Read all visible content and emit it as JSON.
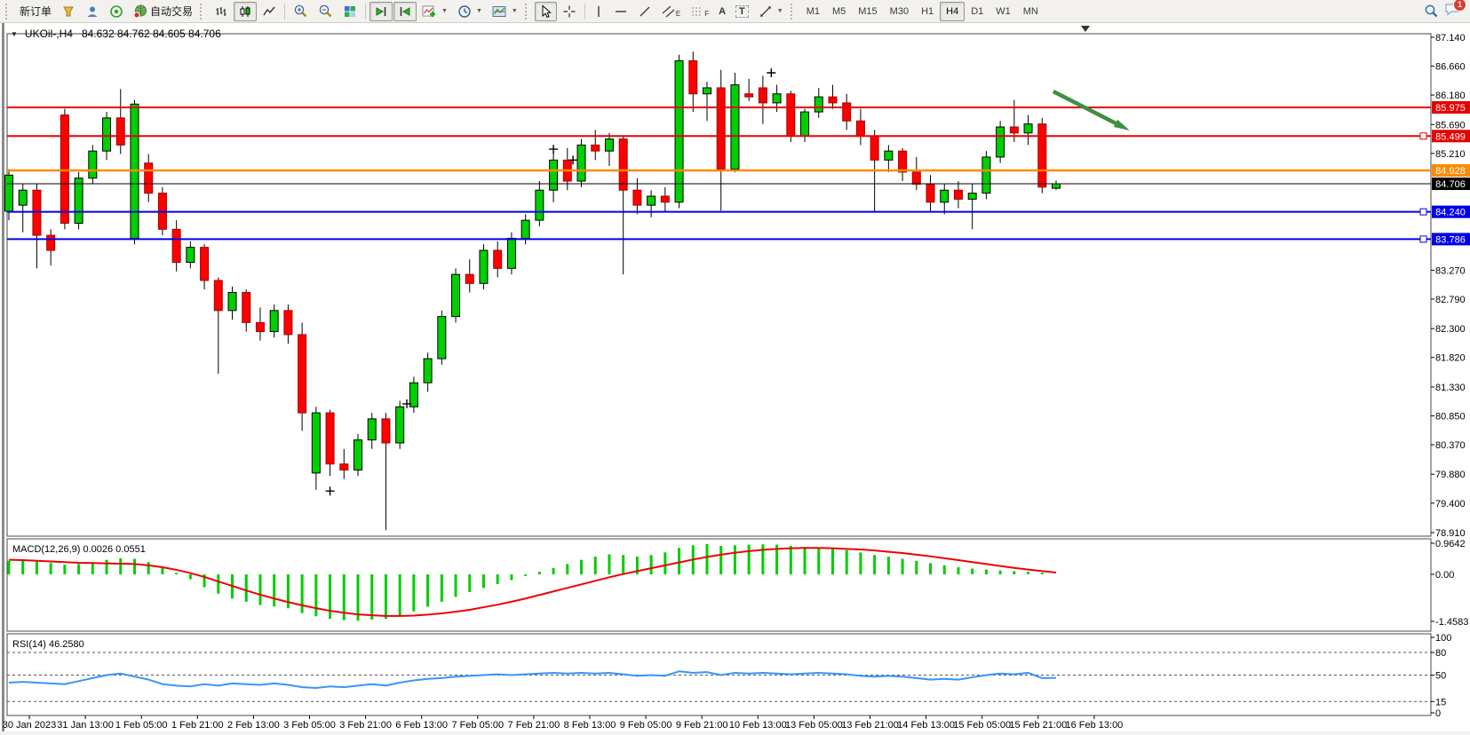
{
  "toolbar": {
    "new_order": "新订单",
    "autotrading": "自动交易",
    "timeframes": [
      "M1",
      "M5",
      "M15",
      "M30",
      "H1",
      "H4",
      "D1",
      "W1",
      "MN"
    ],
    "active_timeframe": "H4",
    "notification_count": "1",
    "tool_glyphs": {
      "text_tool": "A",
      "label_tool": "T",
      "channel_tool": "E",
      "fibo_tool": "F",
      "dropdown": "▼",
      "collapse": "▼"
    }
  },
  "chart": {
    "title_symbol": "UKOil-,H4",
    "title_ohlc": "84.632 84.762 84.605 84.706"
  },
  "chart_data": {
    "type": "candlestick",
    "symbol": "UKOil-,H4",
    "timeframe": "H4",
    "grid": false,
    "colors": {
      "up": "#00cf00",
      "down": "#ff0000",
      "up_stroke": "#000000",
      "down_stroke": "#a50000",
      "wick": "#000000",
      "axis_text": "#000000"
    },
    "main_ylim": [
      78.91,
      87.14
    ],
    "price_axis_ticks": [
      "87.140",
      "86.660",
      "86.180",
      "85.690",
      "85.210",
      "83.270",
      "82.790",
      "82.300",
      "81.820",
      "81.330",
      "80.850",
      "80.370",
      "79.880",
      "79.400",
      "78.910"
    ],
    "time_labels": [
      "30 Jan 2023",
      "31 Jan 13:00",
      "1 Feb 05:00",
      "1 Feb 21:00",
      "2 Feb 13:00",
      "3 Feb 05:00",
      "3 Feb 21:00",
      "6 Feb 13:00",
      "7 Feb 05:00",
      "7 Feb 21:00",
      "8 Feb 13:00",
      "9 Feb 05:00",
      "9 Feb 21:00",
      "10 Feb 13:00",
      "13 Feb 05:00",
      "13 Feb 21:00",
      "14 Feb 13:00",
      "15 Feb 05:00",
      "15 Feb 21:00",
      "16 Feb 13:00"
    ],
    "bars": [
      [
        84.25,
        84.95,
        84.1,
        84.85
      ],
      [
        84.35,
        84.7,
        83.9,
        84.6
      ],
      [
        84.6,
        84.7,
        83.3,
        83.85
      ],
      [
        83.85,
        83.95,
        83.35,
        83.6
      ],
      [
        85.85,
        85.95,
        83.95,
        84.05
      ],
      [
        84.05,
        84.9,
        83.95,
        84.8
      ],
      [
        84.8,
        85.35,
        84.7,
        85.25
      ],
      [
        85.25,
        85.9,
        85.1,
        85.8
      ],
      [
        85.8,
        86.28,
        85.2,
        85.35
      ],
      [
        83.8,
        86.1,
        83.7,
        86.03
      ],
      [
        85.05,
        85.2,
        84.4,
        84.55
      ],
      [
        84.55,
        84.65,
        83.85,
        83.95
      ],
      [
        83.95,
        84.1,
        83.25,
        83.4
      ],
      [
        83.4,
        83.75,
        83.3,
        83.65
      ],
      [
        83.65,
        83.7,
        82.95,
        83.1
      ],
      [
        83.1,
        83.15,
        81.55,
        82.6
      ],
      [
        82.6,
        83.0,
        82.45,
        82.9
      ],
      [
        82.9,
        82.95,
        82.25,
        82.4
      ],
      [
        82.4,
        82.65,
        82.1,
        82.25
      ],
      [
        82.25,
        82.7,
        82.15,
        82.6
      ],
      [
        82.6,
        82.7,
        82.05,
        82.2
      ],
      [
        82.2,
        82.4,
        80.6,
        80.9
      ],
      [
        79.9,
        81.0,
        79.62,
        80.9
      ],
      [
        80.9,
        80.95,
        79.85,
        80.05
      ],
      [
        80.05,
        80.3,
        79.8,
        79.95
      ],
      [
        79.95,
        80.55,
        79.85,
        80.45
      ],
      [
        80.45,
        80.9,
        80.3,
        80.8
      ],
      [
        80.8,
        80.9,
        78.95,
        80.4
      ],
      [
        80.4,
        81.1,
        80.3,
        81.0
      ],
      [
        81.0,
        81.5,
        80.9,
        81.4
      ],
      [
        81.4,
        81.9,
        81.25,
        81.8
      ],
      [
        81.8,
        82.6,
        81.7,
        82.5
      ],
      [
        82.5,
        83.3,
        82.4,
        83.2
      ],
      [
        83.2,
        83.45,
        82.9,
        83.05
      ],
      [
        83.05,
        83.7,
        82.95,
        83.6
      ],
      [
        83.6,
        83.75,
        83.15,
        83.3
      ],
      [
        83.3,
        83.9,
        83.2,
        83.8
      ],
      [
        83.8,
        84.2,
        83.7,
        84.1
      ],
      [
        84.1,
        84.75,
        84.0,
        84.6
      ],
      [
        84.6,
        85.25,
        84.4,
        85.1
      ],
      [
        85.1,
        85.3,
        84.6,
        84.75
      ],
      [
        84.75,
        85.45,
        84.65,
        85.35
      ],
      [
        85.35,
        85.6,
        85.1,
        85.25
      ],
      [
        85.25,
        85.55,
        85.0,
        85.45
      ],
      [
        85.45,
        85.5,
        83.2,
        84.6
      ],
      [
        84.6,
        84.8,
        84.2,
        84.35
      ],
      [
        84.35,
        84.6,
        84.15,
        84.5
      ],
      [
        84.5,
        84.65,
        84.25,
        84.4
      ],
      [
        84.4,
        86.85,
        84.3,
        86.75
      ],
      [
        86.75,
        86.9,
        85.9,
        86.2
      ],
      [
        86.2,
        86.4,
        85.75,
        86.3
      ],
      [
        86.3,
        86.6,
        84.26,
        84.95
      ],
      [
        84.95,
        86.55,
        84.9,
        86.35
      ],
      [
        86.2,
        86.45,
        86.08,
        86.15
      ],
      [
        86.3,
        86.5,
        85.7,
        86.05
      ],
      [
        86.05,
        86.35,
        85.9,
        86.2
      ],
      [
        86.2,
        86.25,
        85.4,
        85.5
      ],
      [
        85.5,
        85.95,
        85.4,
        85.9
      ],
      [
        85.9,
        86.3,
        85.8,
        86.15
      ],
      [
        86.15,
        86.35,
        85.95,
        86.05
      ],
      [
        86.05,
        86.2,
        85.6,
        85.75
      ],
      [
        85.75,
        85.95,
        85.35,
        85.5
      ],
      [
        85.5,
        85.6,
        84.25,
        85.1
      ],
      [
        85.1,
        85.35,
        84.9,
        85.25
      ],
      [
        85.25,
        85.3,
        84.75,
        84.9
      ],
      [
        84.9,
        85.15,
        84.6,
        84.7
      ],
      [
        84.7,
        84.85,
        84.25,
        84.4
      ],
      [
        84.4,
        84.7,
        84.2,
        84.6
      ],
      [
        84.6,
        84.75,
        84.3,
        84.45
      ],
      [
        84.45,
        84.7,
        83.95,
        84.55
      ],
      [
        84.55,
        85.25,
        84.45,
        85.15
      ],
      [
        85.15,
        85.75,
        85.05,
        85.65
      ],
      [
        85.65,
        86.1,
        85.4,
        85.55
      ],
      [
        85.55,
        85.85,
        85.35,
        85.7
      ],
      [
        85.7,
        85.8,
        84.55,
        84.65
      ],
      [
        84.632,
        84.762,
        84.605,
        84.706
      ]
    ],
    "hlines": [
      {
        "price": 85.975,
        "label": "85.975",
        "color": "#e60000",
        "width": 2,
        "handle": false
      },
      {
        "price": 85.499,
        "label": "85.499",
        "color": "#e60000",
        "width": 2,
        "handle": true
      },
      {
        "price": 84.928,
        "label": "84.928",
        "color": "#ff8a00",
        "width": 2.5,
        "handle": false
      },
      {
        "price": 84.24,
        "label": "84.240",
        "color": "#0000e8",
        "width": 2,
        "handle": true
      },
      {
        "price": 83.786,
        "label": "83.786",
        "color": "#0000e8",
        "width": 2,
        "handle": true
      }
    ],
    "current_price": {
      "value": 84.706,
      "label": "84.706",
      "color": "#000000"
    },
    "trend_arrow": {
      "from_bar": 74.8,
      "from_price": 86.24,
      "to_bar": 79.7,
      "to_price": 85.66,
      "color": "#3f8f3f"
    },
    "markers": [
      {
        "bar": 23,
        "price": 79.6
      },
      {
        "bar": 28.5,
        "price": 81.05
      },
      {
        "bar": 39,
        "price": 85.28
      },
      {
        "bar": 40.4,
        "price": 85.1
      },
      {
        "bar": 54.6,
        "price": 86.55
      }
    ],
    "macd": {
      "label": "MACD(12,26,9) 0.0026 0.0551",
      "params": "12,26,9",
      "value": 0.0026,
      "signal_value": 0.0551,
      "axis_ticks": [
        "0.9642",
        "0.00",
        "-1.4583"
      ],
      "ylim": [
        -1.4583,
        0.9642
      ],
      "hist_color": "#00cd00",
      "signal_color": "#f00000",
      "hist": [
        0.42,
        0.45,
        0.4,
        0.35,
        0.3,
        0.32,
        0.38,
        0.45,
        0.5,
        0.48,
        0.38,
        0.22,
        0.05,
        -0.15,
        -0.4,
        -0.6,
        -0.75,
        -0.85,
        -0.95,
        -1.0,
        -1.05,
        -1.2,
        -1.3,
        -1.38,
        -1.42,
        -1.44,
        -1.4,
        -1.38,
        -1.28,
        -1.15,
        -1.0,
        -0.85,
        -0.7,
        -0.55,
        -0.42,
        -0.3,
        -0.18,
        -0.05,
        0.08,
        0.2,
        0.32,
        0.45,
        0.55,
        0.62,
        0.6,
        0.55,
        0.6,
        0.68,
        0.82,
        0.9,
        0.94,
        0.88,
        0.9,
        0.92,
        0.93,
        0.92,
        0.88,
        0.85,
        0.82,
        0.8,
        0.75,
        0.68,
        0.6,
        0.55,
        0.48,
        0.42,
        0.35,
        0.28,
        0.22,
        0.18,
        0.15,
        0.12,
        0.1,
        0.08,
        0.05,
        0.0026
      ],
      "signal": [
        0.45,
        0.44,
        0.42,
        0.4,
        0.38,
        0.36,
        0.35,
        0.34,
        0.33,
        0.32,
        0.28,
        0.22,
        0.14,
        0.04,
        -0.08,
        -0.22,
        -0.36,
        -0.5,
        -0.63,
        -0.75,
        -0.86,
        -0.96,
        -1.05,
        -1.13,
        -1.19,
        -1.24,
        -1.27,
        -1.29,
        -1.29,
        -1.28,
        -1.25,
        -1.21,
        -1.16,
        -1.1,
        -1.02,
        -0.94,
        -0.85,
        -0.75,
        -0.64,
        -0.53,
        -0.42,
        -0.31,
        -0.2,
        -0.09,
        0.01,
        0.1,
        0.19,
        0.28,
        0.37,
        0.46,
        0.54,
        0.61,
        0.67,
        0.72,
        0.76,
        0.79,
        0.81,
        0.82,
        0.82,
        0.81,
        0.79,
        0.77,
        0.74,
        0.7,
        0.66,
        0.61,
        0.56,
        0.5,
        0.44,
        0.38,
        0.32,
        0.26,
        0.2,
        0.15,
        0.1,
        0.0551
      ]
    },
    "rsi": {
      "label": "RSI(14) 46.2580",
      "period": 14,
      "value": 46.258,
      "levels": [
        80,
        50,
        15
      ],
      "axis_ticks": [
        "100",
        "80",
        "50",
        "15",
        "0"
      ],
      "ylim": [
        0,
        100
      ],
      "color": "#3895f8",
      "values": [
        40,
        41,
        40,
        39,
        38,
        42,
        46,
        50,
        52,
        48,
        44,
        38,
        36,
        35,
        38,
        36,
        39,
        38,
        37,
        39,
        37,
        34,
        33,
        35,
        34,
        36,
        38,
        36,
        40,
        43,
        45,
        46,
        48,
        49,
        50,
        51,
        50,
        51,
        52,
        53,
        52,
        53,
        52,
        53,
        51,
        49,
        50,
        49,
        55,
        53,
        54,
        50,
        53,
        52,
        53,
        52,
        51,
        52,
        53,
        52,
        51,
        49,
        48,
        49,
        48,
        46,
        44,
        45,
        44,
        47,
        50,
        52,
        51,
        53,
        46,
        46.26
      ]
    }
  }
}
